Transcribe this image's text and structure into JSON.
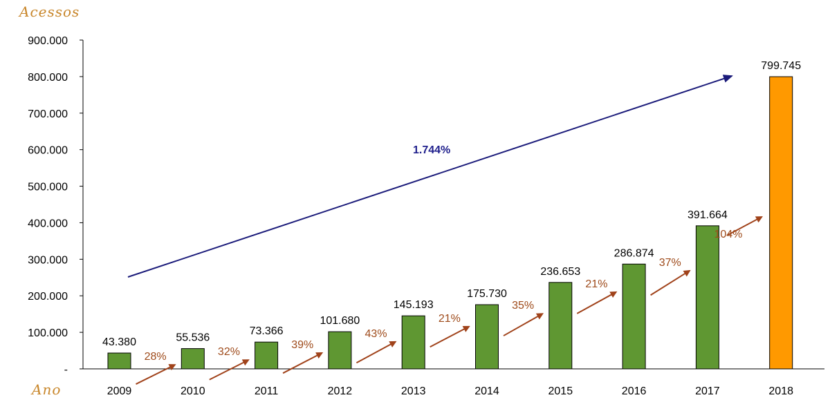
{
  "chart_data": {
    "type": "bar",
    "ylabel": "Acessos",
    "xlabel": "Ano",
    "ylim": [
      0,
      900000
    ],
    "yticks": [
      {
        "value": 0,
        "label": "-"
      },
      {
        "value": 100000,
        "label": "100.000"
      },
      {
        "value": 200000,
        "label": "200.000"
      },
      {
        "value": 300000,
        "label": "300.000"
      },
      {
        "value": 400000,
        "label": "400.000"
      },
      {
        "value": 500000,
        "label": "500.000"
      },
      {
        "value": 600000,
        "label": "600.000"
      },
      {
        "value": 700000,
        "label": "700.000"
      },
      {
        "value": 800000,
        "label": "800.000"
      },
      {
        "value": 900000,
        "label": "900.000"
      }
    ],
    "categories": [
      "2009",
      "2010",
      "2011",
      "2012",
      "2013",
      "2014",
      "2015",
      "2016",
      "2017",
      "2018"
    ],
    "values": [
      43380,
      55536,
      73366,
      101680,
      145193,
      175730,
      236653,
      286874,
      391664,
      799745
    ],
    "value_labels": [
      "43.380",
      "55.536",
      "73.366",
      "101.680",
      "145.193",
      "175.730",
      "236.653",
      "286.874",
      "391.664",
      "799.745"
    ],
    "growth_labels": [
      "28%",
      "32%",
      "39%",
      "43%",
      "21%",
      "35%",
      "21%",
      "37%",
      "104%"
    ],
    "total_growth_label": "1.744%",
    "grid": false,
    "colors": {
      "bar": "#5f9732",
      "highlight_bar": "#ff9900",
      "growth_arrow": "#a0421a",
      "total_arrow": "#1b1b7a"
    },
    "highlight_index": 9
  }
}
